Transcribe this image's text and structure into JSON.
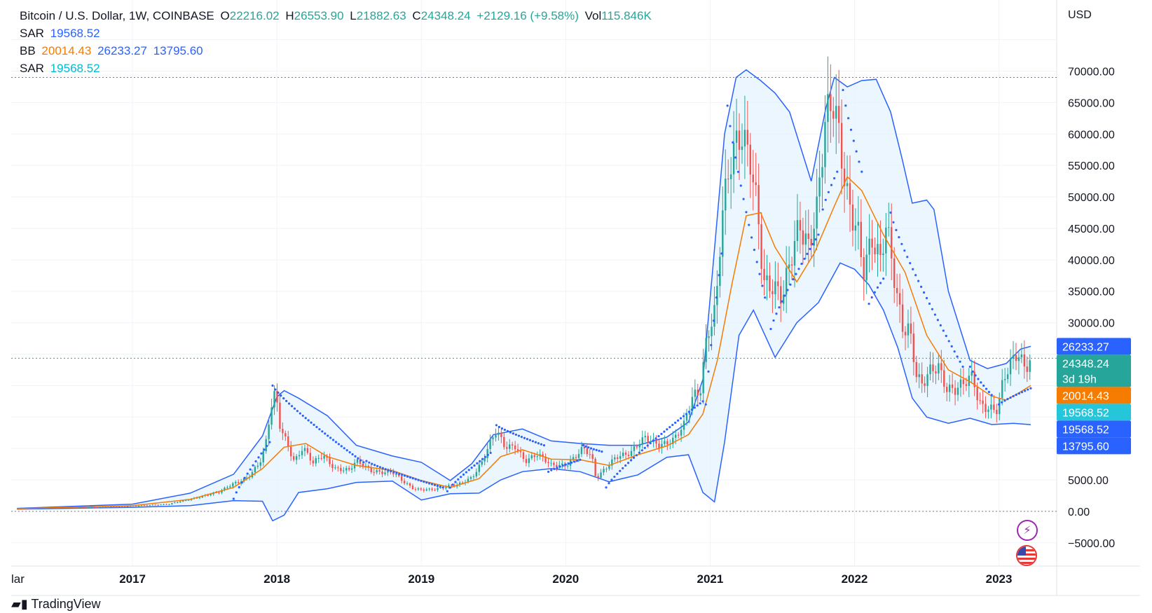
{
  "legend": {
    "pair": "Bitcoin / U.S. Dollar, 1W, COINBASE",
    "o_label": "O",
    "o_value": "22216.02",
    "h_label": "H",
    "h_value": "26553.90",
    "l_label": "L",
    "l_value": "21882.63",
    "c_label": "C",
    "c_value": "24348.24",
    "change": "+2129.16 (+9.58%)",
    "vol_label": "Vol",
    "vol_value": "115.846K",
    "sar1_label": "SAR",
    "sar1_value": "19568.52",
    "bb_label": "BB",
    "bb_basis": "20014.43",
    "bb_upper": "26233.27",
    "bb_lower": "13795.60",
    "sar2_label": "SAR",
    "sar2_value": "19568.52"
  },
  "footer": {
    "brand": "TradingView"
  },
  "icons": {
    "bolt": "lightning-icon",
    "flag": "us-flag-icon"
  },
  "colors": {
    "up": "#26a69a",
    "down": "#ef5350",
    "bb_band": "#2962ff",
    "bb_basis": "#f57c00",
    "sar": "#2962ff",
    "band_fill": "#e3f2fd"
  },
  "chart_data": {
    "type": "candlestick",
    "currency": "USD",
    "y_ticks": [
      -5000,
      0,
      5000,
      10000,
      15000,
      20000,
      25000,
      30000,
      35000,
      40000,
      45000,
      50000,
      55000,
      60000,
      65000,
      70000,
      75000
    ],
    "y_tick_labels": [
      "−5000.00",
      "0.00",
      "5000.00",
      "",
      "",
      "",
      "",
      "30000.00",
      "35000.00",
      "40000.00",
      "45000.00",
      "50000.00",
      "55000.00",
      "60000.00",
      "65000.00",
      "70000.00",
      ""
    ],
    "x_labels": [
      {
        "t": 2016.21,
        "label": "lar"
      },
      {
        "t": 2017.0,
        "label": "2017"
      },
      {
        "t": 2018.0,
        "label": "2018"
      },
      {
        "t": 2019.0,
        "label": "2019"
      },
      {
        "t": 2020.0,
        "label": "2020"
      },
      {
        "t": 2021.0,
        "label": "2021"
      },
      {
        "t": 2022.0,
        "label": "2022"
      },
      {
        "t": 2023.0,
        "label": "2023"
      }
    ],
    "x_range": [
      2016.16,
      2023.4
    ],
    "y_range": [
      -8700,
      77300
    ],
    "price_line": 24348.24,
    "ath_line": 69000,
    "price_labels": [
      {
        "value": 26233.27,
        "text": "26233.27",
        "sub": "",
        "color": "#2962ff"
      },
      {
        "value": 24348.24,
        "text": "24348.24",
        "sub": "3d 19h",
        "color": "#26a69a"
      },
      {
        "value": 20014.43,
        "text": "20014.43",
        "sub": "",
        "color": "#f57c00"
      },
      {
        "value": 19568.52,
        "text": "19568.52",
        "sub": "",
        "color": "#26c6da"
      },
      {
        "value": 19568.52,
        "text": "19568.52",
        "sub": "",
        "color": "#2962ff"
      },
      {
        "value": 13795.6,
        "text": "13795.60",
        "sub": "",
        "color": "#2962ff"
      }
    ],
    "price_path": [
      [
        2016.2,
        420
      ],
      [
        2016.5,
        650
      ],
      [
        2016.6,
        580
      ],
      [
        2016.9,
        750
      ],
      [
        2017.1,
        1000
      ],
      [
        2017.25,
        1100
      ],
      [
        2017.4,
        2000
      ],
      [
        2017.5,
        2500
      ],
      [
        2017.6,
        3000
      ],
      [
        2017.7,
        4500
      ],
      [
        2017.8,
        5500
      ],
      [
        2017.88,
        7500
      ],
      [
        2017.92,
        10000
      ],
      [
        2017.96,
        16500
      ],
      [
        2017.99,
        19000
      ],
      [
        2018.02,
        14000
      ],
      [
        2018.08,
        10500
      ],
      [
        2018.12,
        8000
      ],
      [
        2018.18,
        10000
      ],
      [
        2018.25,
        7500
      ],
      [
        2018.32,
        9000
      ],
      [
        2018.4,
        7000
      ],
      [
        2018.5,
        6500
      ],
      [
        2018.55,
        7800
      ],
      [
        2018.65,
        6500
      ],
      [
        2018.8,
        6300
      ],
      [
        2018.88,
        4500
      ],
      [
        2018.95,
        3500
      ],
      [
        2019.1,
        3600
      ],
      [
        2019.25,
        4100
      ],
      [
        2019.35,
        5500
      ],
      [
        2019.42,
        8000
      ],
      [
        2019.48,
        11000
      ],
      [
        2019.52,
        12500
      ],
      [
        2019.58,
        10000
      ],
      [
        2019.65,
        10500
      ],
      [
        2019.72,
        8200
      ],
      [
        2019.8,
        9000
      ],
      [
        2019.9,
        7200
      ],
      [
        2020.0,
        7500
      ],
      [
        2020.12,
        10000
      ],
      [
        2020.18,
        8500
      ],
      [
        2020.21,
        5000
      ],
      [
        2020.28,
        7000
      ],
      [
        2020.35,
        9000
      ],
      [
        2020.45,
        9200
      ],
      [
        2020.55,
        11500
      ],
      [
        2020.65,
        10800
      ],
      [
        2020.75,
        11500
      ],
      [
        2020.82,
        13500
      ],
      [
        2020.88,
        18000
      ],
      [
        2020.93,
        19000
      ],
      [
        2020.98,
        29000
      ],
      [
        2021.04,
        33000
      ],
      [
        2021.08,
        47000
      ],
      [
        2021.15,
        55000
      ],
      [
        2021.22,
        59000
      ],
      [
        2021.28,
        57000
      ],
      [
        2021.33,
        49000
      ],
      [
        2021.37,
        37000
      ],
      [
        2021.44,
        35000
      ],
      [
        2021.5,
        33000
      ],
      [
        2021.55,
        39000
      ],
      [
        2021.62,
        47000
      ],
      [
        2021.68,
        43000
      ],
      [
        2021.74,
        48000
      ],
      [
        2021.8,
        61000
      ],
      [
        2021.86,
        64000
      ],
      [
        2021.91,
        57000
      ],
      [
        2021.96,
        50000
      ],
      [
        2022.02,
        46000
      ],
      [
        2022.06,
        38000
      ],
      [
        2022.12,
        42000
      ],
      [
        2022.18,
        39000
      ],
      [
        2022.22,
        46000
      ],
      [
        2022.27,
        39000
      ],
      [
        2022.33,
        30000
      ],
      [
        2022.38,
        29000
      ],
      [
        2022.43,
        21000
      ],
      [
        2022.47,
        19500
      ],
      [
        2022.52,
        22000
      ],
      [
        2022.58,
        23500
      ],
      [
        2022.64,
        20000
      ],
      [
        2022.7,
        19500
      ],
      [
        2022.76,
        20000
      ],
      [
        2022.82,
        21000
      ],
      [
        2022.86,
        17000
      ],
      [
        2022.92,
        16800
      ],
      [
        2022.99,
        16600
      ],
      [
        2023.03,
        21000
      ],
      [
        2023.08,
        23000
      ],
      [
        2023.13,
        24500
      ],
      [
        2023.18,
        22500
      ],
      [
        2023.22,
        24348
      ]
    ],
    "bb_basis_path": [
      [
        2016.2,
        420
      ],
      [
        2017.0,
        900
      ],
      [
        2017.4,
        1900
      ],
      [
        2017.7,
        3800
      ],
      [
        2017.9,
        6800
      ],
      [
        2018.05,
        10200
      ],
      [
        2018.2,
        10800
      ],
      [
        2018.35,
        8700
      ],
      [
        2018.55,
        7300
      ],
      [
        2018.8,
        6500
      ],
      [
        2019.0,
        4900
      ],
      [
        2019.2,
        3800
      ],
      [
        2019.4,
        5200
      ],
      [
        2019.55,
        8700
      ],
      [
        2019.7,
        9800
      ],
      [
        2019.9,
        8300
      ],
      [
        2020.1,
        8200
      ],
      [
        2020.3,
        7300
      ],
      [
        2020.5,
        9000
      ],
      [
        2020.7,
        10400
      ],
      [
        2020.85,
        12200
      ],
      [
        2020.95,
        15500
      ],
      [
        2021.05,
        24000
      ],
      [
        2021.15,
        36000
      ],
      [
        2021.25,
        47000
      ],
      [
        2021.35,
        47500
      ],
      [
        2021.45,
        42000
      ],
      [
        2021.6,
        36500
      ],
      [
        2021.72,
        41000
      ],
      [
        2021.85,
        48000
      ],
      [
        2021.95,
        53200
      ],
      [
        2022.05,
        51000
      ],
      [
        2022.2,
        44000
      ],
      [
        2022.35,
        38000
      ],
      [
        2022.5,
        28000
      ],
      [
        2022.65,
        22500
      ],
      [
        2022.8,
        20600
      ],
      [
        2022.95,
        18300
      ],
      [
        2023.05,
        17700
      ],
      [
        2023.15,
        19000
      ],
      [
        2023.22,
        20014
      ]
    ],
    "bb_upper_path": [
      [
        2016.2,
        480
      ],
      [
        2017.0,
        1150
      ],
      [
        2017.4,
        2900
      ],
      [
        2017.7,
        5900
      ],
      [
        2017.9,
        12000
      ],
      [
        2018.0,
        18200
      ],
      [
        2018.05,
        19200
      ],
      [
        2018.15,
        18000
      ],
      [
        2018.35,
        15200
      ],
      [
        2018.55,
        10500
      ],
      [
        2018.8,
        8800
      ],
      [
        2019.0,
        7800
      ],
      [
        2019.2,
        4900
      ],
      [
        2019.35,
        7600
      ],
      [
        2019.5,
        12200
      ],
      [
        2019.7,
        13100
      ],
      [
        2019.9,
        11200
      ],
      [
        2020.1,
        10800
      ],
      [
        2020.3,
        10500
      ],
      [
        2020.5,
        10500
      ],
      [
        2020.7,
        11800
      ],
      [
        2020.85,
        14200
      ],
      [
        2020.95,
        21000
      ],
      [
        2021.02,
        39000
      ],
      [
        2021.1,
        60000
      ],
      [
        2021.18,
        69000
      ],
      [
        2021.25,
        70200
      ],
      [
        2021.35,
        68500
      ],
      [
        2021.45,
        66500
      ],
      [
        2021.55,
        63500
      ],
      [
        2021.7,
        52500
      ],
      [
        2021.8,
        64000
      ],
      [
        2021.86,
        69000
      ],
      [
        2021.95,
        67500
      ],
      [
        2022.05,
        68500
      ],
      [
        2022.15,
        68700
      ],
      [
        2022.25,
        63500
      ],
      [
        2022.33,
        56000
      ],
      [
        2022.4,
        49000
      ],
      [
        2022.5,
        49500
      ],
      [
        2022.55,
        48000
      ],
      [
        2022.65,
        35000
      ],
      [
        2022.8,
        24000
      ],
      [
        2022.92,
        22700
      ],
      [
        2023.05,
        23500
      ],
      [
        2023.15,
        25800
      ],
      [
        2023.22,
        26233
      ]
    ],
    "bb_lower_path": [
      [
        2016.2,
        360
      ],
      [
        2017.0,
        650
      ],
      [
        2017.4,
        900
      ],
      [
        2017.7,
        1700
      ],
      [
        2017.9,
        1600
      ],
      [
        2017.97,
        -1500
      ],
      [
        2018.05,
        -600
      ],
      [
        2018.15,
        3000
      ],
      [
        2018.35,
        3600
      ],
      [
        2018.55,
        4600
      ],
      [
        2018.8,
        4800
      ],
      [
        2019.0,
        1800
      ],
      [
        2019.2,
        2800
      ],
      [
        2019.4,
        2900
      ],
      [
        2019.55,
        5000
      ],
      [
        2019.7,
        6300
      ],
      [
        2019.9,
        6800
      ],
      [
        2020.1,
        6300
      ],
      [
        2020.3,
        4700
      ],
      [
        2020.5,
        5800
      ],
      [
        2020.7,
        8600
      ],
      [
        2020.85,
        9000
      ],
      [
        2020.95,
        3000
      ],
      [
        2021.03,
        1500
      ],
      [
        2021.1,
        11000
      ],
      [
        2021.2,
        28000
      ],
      [
        2021.3,
        32000
      ],
      [
        2021.45,
        24500
      ],
      [
        2021.6,
        30000
      ],
      [
        2021.75,
        33200
      ],
      [
        2021.9,
        39500
      ],
      [
        2022.0,
        38500
      ],
      [
        2022.1,
        36000
      ],
      [
        2022.2,
        32000
      ],
      [
        2022.3,
        26000
      ],
      [
        2022.4,
        18000
      ],
      [
        2022.5,
        15000
      ],
      [
        2022.65,
        14000
      ],
      [
        2022.8,
        14800
      ],
      [
        2022.95,
        13800
      ],
      [
        2023.1,
        14000
      ],
      [
        2023.22,
        13796
      ]
    ],
    "sar_segments": [
      {
        "start": 2017.7,
        "end": 2017.95,
        "from": 2000,
        "to": 11000
      },
      {
        "start": 2017.97,
        "end": 2018.6,
        "from": 20000,
        "to": 7800
      },
      {
        "start": 2018.62,
        "end": 2019.15,
        "from": 8000,
        "to": 3800
      },
      {
        "start": 2019.18,
        "end": 2019.48,
        "from": 3200,
        "to": 9300
      },
      {
        "start": 2019.52,
        "end": 2019.85,
        "from": 13700,
        "to": 10500
      },
      {
        "start": 2019.88,
        "end": 2020.1,
        "from": 6300,
        "to": 8200
      },
      {
        "start": 2020.12,
        "end": 2020.25,
        "from": 10500,
        "to": 9500
      },
      {
        "start": 2020.28,
        "end": 2020.95,
        "from": 3800,
        "to": 17500
      },
      {
        "start": 2020.97,
        "end": 2021.08,
        "from": 17000,
        "to": 41000
      },
      {
        "start": 2021.12,
        "end": 2021.38,
        "from": 64500,
        "to": 34000
      },
      {
        "start": 2021.42,
        "end": 2021.75,
        "from": 29000,
        "to": 44000
      },
      {
        "start": 2021.78,
        "end": 2021.88,
        "from": 48000,
        "to": 54000
      },
      {
        "start": 2021.92,
        "end": 2022.05,
        "from": 67000,
        "to": 54000
      },
      {
        "start": 2022.1,
        "end": 2022.2,
        "from": 33000,
        "to": 37000
      },
      {
        "start": 2022.25,
        "end": 2022.75,
        "from": 47500,
        "to": 23000
      },
      {
        "start": 2022.8,
        "end": 2022.95,
        "from": 23000,
        "to": 18500
      },
      {
        "start": 2023.0,
        "end": 2023.22,
        "from": 17000,
        "to": 19568
      }
    ]
  }
}
